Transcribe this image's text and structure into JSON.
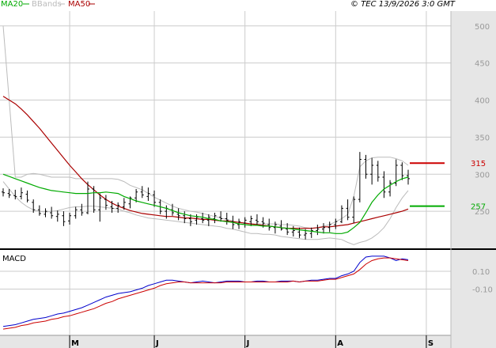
{
  "legend": {
    "ma20": "MA20",
    "bbands": "BBands",
    "ma50": "MA50",
    "copyright": "© TEC 13/9/2026 3:0 GMT"
  },
  "colors": {
    "ma20": "#00aa00",
    "bbands": "#bbbbbb",
    "ma50": "#aa0000",
    "price": "#000000",
    "macd": "#0000cc",
    "signal": "#cc0000",
    "grid": "#cccccc",
    "panel_bg": "#e6e6e6",
    "resistance": "#cc0000",
    "support": "#00aa00"
  },
  "chart_data": [
    {
      "type": "ohlc",
      "series": [
        {
          "name": "MA20",
          "values": [
            300,
            297,
            294,
            291,
            288,
            285,
            282,
            280,
            278,
            277,
            276,
            275,
            274,
            274,
            274,
            275,
            275,
            276,
            275,
            274,
            270,
            267,
            264,
            262,
            260,
            258,
            256,
            254,
            251,
            248,
            246,
            244,
            243,
            242,
            240,
            239,
            237,
            236,
            235,
            233,
            232,
            231,
            231,
            230,
            230,
            229,
            228,
            227,
            226,
            225,
            224,
            223,
            222,
            221,
            221,
            220,
            220,
            222,
            228,
            235,
            248,
            262,
            272,
            280,
            285,
            290,
            294,
            296
          ]
        },
        {
          "name": "MA50",
          "values": [
            405,
            400,
            395,
            388,
            380,
            371,
            362,
            352,
            342,
            332,
            322,
            312,
            303,
            294,
            286,
            279,
            272,
            266,
            261,
            257,
            254,
            251,
            249,
            247,
            246,
            245,
            244,
            243,
            243,
            242,
            241,
            241,
            240,
            239,
            239,
            238,
            237,
            237,
            236,
            235,
            234,
            233,
            232,
            231,
            230,
            229,
            228,
            227,
            227,
            227,
            227,
            227,
            228,
            229,
            229,
            230,
            231,
            232,
            234,
            236,
            238,
            240,
            242,
            244,
            246,
            248,
            250,
            253
          ]
        },
        {
          "name": "BBand Upper",
          "values": [
            500,
            400,
            296,
            296,
            300,
            301,
            300,
            298,
            296,
            296,
            296,
            296,
            294,
            294,
            294,
            294,
            294,
            294,
            294,
            293,
            290,
            285,
            282,
            279,
            274,
            269,
            265,
            261,
            257,
            254,
            252,
            250,
            249,
            247,
            245,
            243,
            241,
            239,
            237,
            235,
            234,
            233,
            233,
            233,
            233,
            233,
            232,
            232,
            231,
            230,
            228,
            227,
            228,
            230,
            232,
            236,
            240,
            246,
            270,
            310,
            318,
            322,
            323,
            323,
            323,
            321,
            318,
            312
          ]
        },
        {
          "name": "BBand Lower",
          "values": [
            290,
            280,
            270,
            262,
            256,
            252,
            250,
            249,
            250,
            251,
            253,
            255,
            256,
            256,
            257,
            257,
            256,
            255,
            254,
            253,
            250,
            248,
            245,
            243,
            241,
            240,
            239,
            238,
            237,
            236,
            235,
            234,
            233,
            232,
            231,
            230,
            229,
            227,
            226,
            224,
            222,
            220,
            220,
            219,
            219,
            218,
            216,
            215,
            214,
            213,
            212,
            212,
            212,
            213,
            214,
            213,
            212,
            208,
            205,
            208,
            210,
            214,
            220,
            228,
            240,
            255,
            268,
            278
          ]
        }
      ],
      "price_lines": [
        {
          "value": 315,
          "label": "315",
          "kind": "resistance"
        },
        {
          "value": 257,
          "label": "257",
          "kind": "support"
        }
      ],
      "ohlc": [
        [
          276,
          281,
          270,
          275
        ],
        [
          274,
          280,
          268,
          272
        ],
        [
          271,
          279,
          266,
          270
        ],
        [
          270,
          282,
          266,
          275
        ],
        [
          273,
          278,
          262,
          265
        ],
        [
          262,
          266,
          248,
          252
        ],
        [
          252,
          258,
          244,
          247
        ],
        [
          246,
          254,
          242,
          250
        ],
        [
          248,
          256,
          240,
          244
        ],
        [
          243,
          251,
          236,
          246
        ],
        [
          244,
          250,
          230,
          236
        ],
        [
          237,
          248,
          232,
          244
        ],
        [
          244,
          256,
          240,
          252
        ],
        [
          252,
          260,
          244,
          248
        ],
        [
          248,
          290,
          246,
          280
        ],
        [
          280,
          284,
          248,
          252
        ],
        [
          252,
          274,
          236,
          268
        ],
        [
          266,
          272,
          252,
          258
        ],
        [
          256,
          264,
          248,
          254
        ],
        [
          254,
          262,
          248,
          258
        ],
        [
          256,
          268,
          252,
          262
        ],
        [
          260,
          270,
          254,
          268
        ],
        [
          268,
          280,
          262,
          276
        ],
        [
          276,
          284,
          268,
          272
        ],
        [
          270,
          282,
          264,
          274
        ],
        [
          272,
          278,
          256,
          262
        ],
        [
          262,
          266,
          246,
          250
        ],
        [
          250,
          258,
          240,
          254
        ],
        [
          252,
          260,
          244,
          248
        ],
        [
          246,
          254,
          238,
          244
        ],
        [
          244,
          250,
          234,
          240
        ],
        [
          240,
          246,
          230,
          236
        ],
        [
          238,
          246,
          232,
          242
        ],
        [
          240,
          248,
          234,
          238
        ],
        [
          238,
          246,
          230,
          242
        ],
        [
          240,
          248,
          234,
          244
        ],
        [
          242,
          250,
          236,
          240
        ],
        [
          240,
          248,
          232,
          238
        ],
        [
          236,
          244,
          226,
          232
        ],
        [
          232,
          240,
          226,
          236
        ],
        [
          234,
          242,
          228,
          238
        ],
        [
          236,
          244,
          230,
          240
        ],
        [
          238,
          246,
          232,
          236
        ],
        [
          236,
          242,
          228,
          234
        ],
        [
          232,
          240,
          224,
          228
        ],
        [
          228,
          236,
          220,
          232
        ],
        [
          230,
          238,
          224,
          226
        ],
        [
          226,
          234,
          218,
          222
        ],
        [
          222,
          230,
          216,
          224
        ],
        [
          222,
          228,
          214,
          218
        ],
        [
          218,
          226,
          212,
          220
        ],
        [
          220,
          228,
          214,
          224
        ],
        [
          224,
          232,
          218,
          226
        ],
        [
          226,
          234,
          220,
          228
        ],
        [
          228,
          236,
          222,
          232
        ],
        [
          232,
          240,
          226,
          236
        ],
        [
          236,
          258,
          234,
          254
        ],
        [
          254,
          266,
          238,
          242
        ],
        [
          242,
          270,
          234,
          266
        ],
        [
          266,
          330,
          262,
          320
        ],
        [
          320,
          326,
          294,
          300
        ],
        [
          300,
          322,
          286,
          312
        ],
        [
          312,
          318,
          290,
          296
        ],
        [
          296,
          304,
          268,
          276
        ],
        [
          276,
          292,
          270,
          288
        ],
        [
          288,
          320,
          284,
          312
        ],
        [
          312,
          316,
          292,
          298
        ],
        [
          298,
          306,
          286,
          294
        ]
      ],
      "ylim": [
        200,
        520
      ],
      "yticks": [
        250,
        300,
        350,
        400,
        450,
        500
      ],
      "ytick_labels": [
        "250",
        "300",
        "350",
        "400",
        "450",
        "500"
      ]
    },
    {
      "type": "line",
      "title": "MACD",
      "series": [
        {
          "name": "MACD",
          "values": [
            -52,
            -51,
            -50,
            -48,
            -46,
            -44,
            -43,
            -42,
            -40,
            -38,
            -37,
            -35,
            -33,
            -31,
            -28,
            -25,
            -22,
            -19,
            -17,
            -15,
            -14,
            -13,
            -11,
            -9,
            -6,
            -4,
            -2,
            0,
            0,
            -1,
            -2,
            -3,
            -2,
            -1,
            -2,
            -3,
            -2,
            -1,
            -1,
            -1,
            -2,
            -2,
            -1,
            -1,
            -2,
            -2,
            -1,
            -1,
            -1,
            -2,
            -1,
            0,
            0,
            1,
            2,
            2,
            5,
            7,
            10,
            20,
            26,
            27,
            27,
            27,
            25,
            22,
            24,
            23
          ]
        },
        {
          "name": "Signal",
          "values": [
            -55,
            -54,
            -53,
            -51,
            -50,
            -48,
            -47,
            -46,
            -44,
            -43,
            -41,
            -40,
            -38,
            -36,
            -34,
            -32,
            -29,
            -26,
            -24,
            -21,
            -19,
            -17,
            -15,
            -13,
            -11,
            -9,
            -6,
            -4,
            -3,
            -2,
            -2,
            -3,
            -3,
            -3,
            -3,
            -3,
            -3,
            -2,
            -2,
            -2,
            -2,
            -2,
            -2,
            -2,
            -2,
            -2,
            -2,
            -2,
            -1,
            -2,
            -1,
            -1,
            -1,
            0,
            1,
            1,
            3,
            5,
            7,
            12,
            18,
            22,
            24,
            25,
            25,
            24,
            23,
            22
          ]
        }
      ],
      "ylim": [
        -62,
        34
      ],
      "yticks": [
        10,
        -10
      ],
      "ytick_labels": [
        "0.10",
        "-0.10"
      ]
    }
  ],
  "x_axis": {
    "ticks": [
      {
        "index": 11,
        "label": "M"
      },
      {
        "index": 25,
        "label": "J"
      },
      {
        "index": 40,
        "label": "J"
      },
      {
        "index": 55,
        "label": "A"
      },
      {
        "index": 70,
        "label": "S"
      }
    ],
    "count": 68
  }
}
